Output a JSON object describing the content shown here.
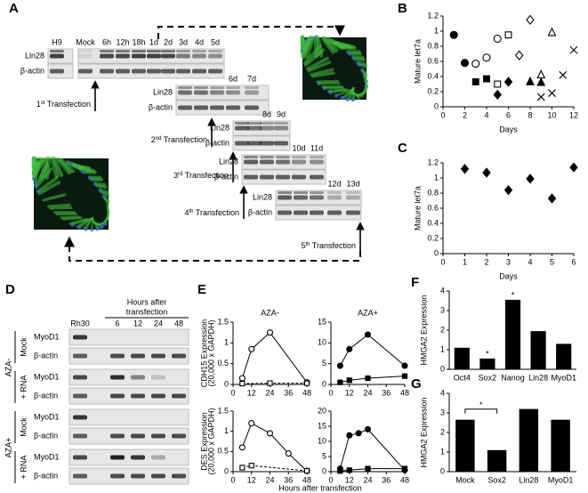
{
  "figure": {
    "panel_labels": [
      "A",
      "B",
      "C",
      "D",
      "E",
      "F",
      "G"
    ]
  },
  "panel_a": {
    "blots": [
      {
        "lanes": [
          "H9",
          "Mock",
          "6h",
          "12h",
          "18h",
          "1d",
          "2d",
          "3d",
          "4d",
          "5d"
        ],
        "rows": [
          "Lin28",
          "β-actin"
        ]
      },
      {
        "lanes": [
          "6d",
          "7d"
        ],
        "rows": [
          "Lin28",
          "β-actin"
        ]
      },
      {
        "lanes": [
          "8d",
          "9d"
        ],
        "rows": [
          "Lin28",
          "β-actin"
        ]
      },
      {
        "lanes": [
          "10d",
          "11d"
        ],
        "rows": [
          "Lin28",
          "β-actin"
        ]
      },
      {
        "lanes": [
          "12d",
          "13d"
        ],
        "rows": [
          "Lin28",
          "β-actin"
        ]
      }
    ],
    "transfections": [
      {
        "num": "1",
        "suffix": "st",
        "text": " Transfection"
      },
      {
        "num": "2",
        "suffix": "nd",
        "text": " Transfection"
      },
      {
        "num": "3",
        "suffix": "rd",
        "text": " Transfection"
      },
      {
        "num": "4",
        "suffix": "th",
        "text": " Transfection"
      },
      {
        "num": "5",
        "suffix": "th",
        "text": " Transfection"
      }
    ]
  },
  "panel_d": {
    "header": [
      "Hours after",
      "transfection"
    ],
    "columns": [
      "Rh30",
      "6",
      "12",
      "24",
      "48"
    ],
    "groups": [
      {
        "treatment": "AZA-",
        "rows": [
          {
            "condition": "Mock",
            "blots": [
              "MyoD1",
              "β-actin"
            ]
          },
          {
            "condition": "+ RNA",
            "blots": [
              "MyoD1",
              "β-actin"
            ]
          }
        ]
      },
      {
        "treatment": "AZA+",
        "rows": [
          {
            "condition": "Mock",
            "blots": [
              "MyoD1",
              "β-actin"
            ]
          },
          {
            "condition": "+ RNA",
            "blots": [
              "MyoD1",
              "β-actin"
            ]
          }
        ]
      }
    ]
  },
  "chart_data": [
    {
      "type": "scatter",
      "ylabel": "Mature let7a",
      "xlabel": "Days",
      "color": "#000000",
      "xlim": [
        0,
        12
      ],
      "xticks": [
        0,
        2,
        4,
        6,
        8,
        10,
        12
      ],
      "ylim": [
        0,
        1.2
      ],
      "yticks": [
        0,
        0.2,
        0.4,
        0.6,
        0.8,
        1,
        1.2
      ],
      "series": [
        {
          "marker": "circle",
          "filled": true,
          "x": [
            1,
            2
          ],
          "values": [
            0.95,
            0.58
          ]
        },
        {
          "marker": "circle",
          "filled": false,
          "x": [
            3,
            4,
            5
          ],
          "values": [
            0.57,
            0.65,
            0.9
          ]
        },
        {
          "marker": "square",
          "filled": true,
          "x": [
            3,
            4
          ],
          "values": [
            0.33,
            0.37
          ]
        },
        {
          "marker": "square",
          "filled": false,
          "x": [
            5,
            6
          ],
          "values": [
            0.3,
            0.95
          ]
        },
        {
          "marker": "diamond",
          "filled": true,
          "x": [
            5,
            6
          ],
          "values": [
            0.16,
            0.33
          ]
        },
        {
          "marker": "diamond",
          "filled": false,
          "x": [
            7,
            8
          ],
          "values": [
            0.68,
            1.15
          ]
        },
        {
          "marker": "triangle",
          "filled": true,
          "x": [
            8,
            9
          ],
          "values": [
            0.33,
            0.32
          ]
        },
        {
          "marker": "triangle",
          "filled": false,
          "x": [
            9,
            10
          ],
          "values": [
            0.42,
            0.98
          ]
        },
        {
          "marker": "x",
          "filled": false,
          "x": [
            9,
            10,
            11,
            12
          ],
          "values": [
            0.13,
            0.18,
            0.42,
            0.75
          ]
        }
      ]
    },
    {
      "type": "scatter",
      "ylabel": "Mature let7a",
      "xlabel": "Days",
      "color": "#000000",
      "xlim": [
        0,
        6
      ],
      "xticks": [
        0,
        1,
        2,
        3,
        4,
        5,
        6
      ],
      "ylim": [
        0,
        1.2
      ],
      "yticks": [
        0,
        0.2,
        0.4,
        0.6,
        0.8,
        1,
        1.2
      ],
      "series": [
        {
          "marker": "diamond",
          "filled": true,
          "x": [
            1,
            2,
            3,
            4,
            5,
            6
          ],
          "values": [
            1.12,
            1.07,
            0.84,
            0.99,
            0.73,
            1.14
          ]
        }
      ]
    },
    {
      "type": "line",
      "title": "AZA-",
      "ylabel": [
        "CDH15 Expression",
        "(20,000 x GAPDH)"
      ],
      "color": "#000000",
      "xlim": [
        0,
        48
      ],
      "xticks": [
        0,
        12,
        24,
        36,
        48
      ],
      "ylim": [
        0,
        1.5
      ],
      "yticks": [
        0,
        0.5,
        1,
        1.5
      ],
      "series": [
        {
          "marker": "circle",
          "filled": false,
          "dashed": false,
          "x": [
            6,
            12,
            24,
            48
          ],
          "values": [
            0.15,
            0.85,
            1.25,
            0.05
          ]
        },
        {
          "marker": "square",
          "filled": false,
          "dashed": true,
          "x": [
            6,
            24,
            48
          ],
          "values": [
            0.02,
            0.03,
            0.03
          ]
        }
      ]
    },
    {
      "type": "line",
      "title": "AZA+",
      "color": "#000000",
      "xlim": [
        0,
        48
      ],
      "xticks": [
        0,
        12,
        24,
        36,
        48
      ],
      "ylim": [
        0,
        15
      ],
      "yticks": [
        0,
        5,
        10,
        15
      ],
      "series": [
        {
          "marker": "circle",
          "filled": true,
          "dashed": false,
          "x": [
            6,
            12,
            24,
            48
          ],
          "values": [
            4.5,
            8.5,
            12,
            4.5
          ]
        },
        {
          "marker": "square",
          "filled": true,
          "dashed": false,
          "x": [
            6,
            12,
            24,
            48
          ],
          "values": [
            0.5,
            1,
            1.5,
            2
          ]
        }
      ]
    },
    {
      "type": "line",
      "ylabel": [
        "DES Expression",
        "(20,000 x GAPDH)"
      ],
      "xlabel": "Hours after transfection",
      "color": "#000000",
      "xlim": [
        0,
        48
      ],
      "xticks": [
        0,
        12,
        24,
        36,
        48
      ],
      "ylim": [
        0,
        1.5
      ],
      "yticks": [
        0,
        0.5,
        1,
        1.5
      ],
      "series": [
        {
          "marker": "circle",
          "filled": false,
          "dashed": false,
          "x": [
            6,
            12,
            24,
            36,
            48
          ],
          "values": [
            0.6,
            1.2,
            0.95,
            0.45,
            0.02
          ]
        },
        {
          "marker": "square",
          "filled": false,
          "dashed": true,
          "x": [
            6,
            12,
            48
          ],
          "values": [
            0.1,
            0.15,
            0.02
          ]
        }
      ]
    },
    {
      "type": "line",
      "color": "#000000",
      "xlim": [
        0,
        48
      ],
      "xticks": [
        0,
        12,
        24,
        36,
        48
      ],
      "ylim": [
        0,
        20
      ],
      "yticks": [
        0,
        5,
        10,
        15,
        20
      ],
      "series": [
        {
          "marker": "circle",
          "filled": true,
          "dashed": false,
          "x": [
            6,
            12,
            18,
            24,
            48
          ],
          "values": [
            1,
            12,
            12.7,
            14,
            0.5
          ]
        },
        {
          "marker": "square",
          "filled": true,
          "dashed": false,
          "x": [
            6,
            12,
            24,
            48
          ],
          "values": [
            0.2,
            0.5,
            1,
            1
          ]
        }
      ]
    },
    {
      "type": "bar",
      "ylabel": "HMGA2 Expression",
      "color": "#000000",
      "categories": [
        "Oct4",
        "Sox2",
        "Nanog",
        "Lin28",
        "MyoD1"
      ],
      "values": [
        1.1,
        0.55,
        3.55,
        1.95,
        1.3
      ],
      "ylim": [
        0,
        4
      ],
      "yticks": [
        0,
        1,
        2,
        3,
        4
      ],
      "annotations": [
        {
          "text": "*",
          "category": "Sox2"
        },
        {
          "text": "*",
          "category": "Nanog"
        }
      ]
    },
    {
      "type": "bar",
      "ylabel": "HMGA2 Expression",
      "color": "#000000",
      "categories": [
        "Mock",
        "Sox2",
        "Lin28",
        "MyoD1"
      ],
      "values": [
        2.65,
        1.1,
        3.2,
        2.65
      ],
      "ylim": [
        0,
        4
      ],
      "yticks": [
        0,
        1,
        2,
        3,
        4
      ],
      "annotations": [
        {
          "text": "*",
          "between": [
            "Mock",
            "Sox2"
          ]
        }
      ]
    }
  ]
}
